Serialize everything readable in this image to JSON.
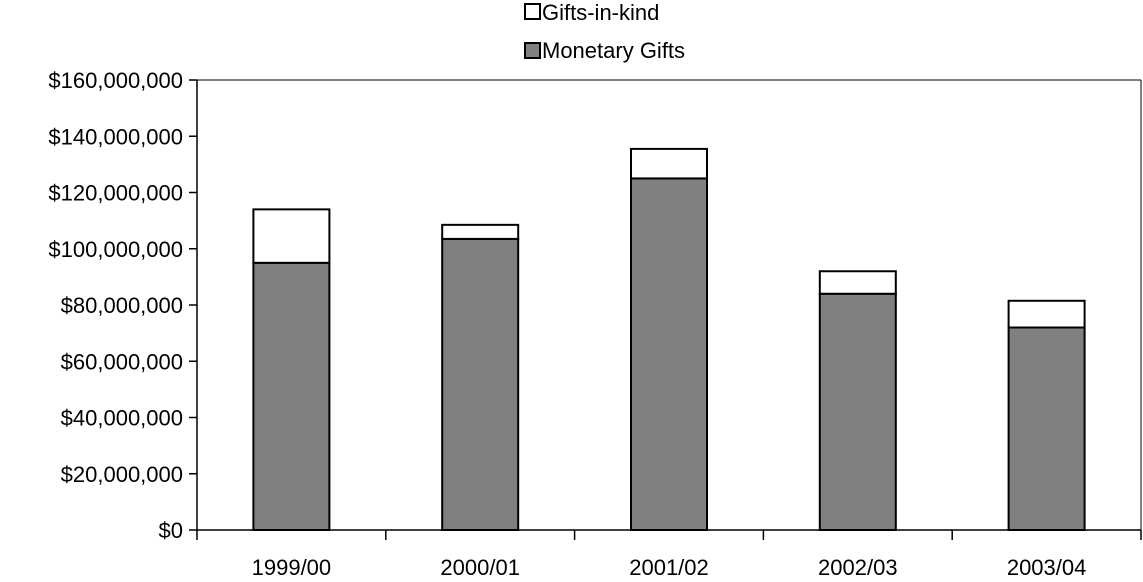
{
  "chart_data": {
    "type": "bar",
    "stacked": true,
    "categories": [
      "1999/00",
      "2000/01",
      "2001/02",
      "2002/03",
      "2003/04"
    ],
    "series": [
      {
        "name": "Monetary Gifts",
        "color": "#808080",
        "values": [
          95000000,
          103500000,
          125000000,
          84000000,
          72000000
        ]
      },
      {
        "name": "Gifts-in-kind",
        "color": "#ffffff",
        "values": [
          19000000,
          5000000,
          10500000,
          8000000,
          9500000
        ]
      }
    ],
    "ylim": [
      0,
      160000000
    ],
    "yticks": [
      0,
      20000000,
      40000000,
      60000000,
      80000000,
      100000000,
      120000000,
      140000000,
      160000000
    ],
    "ytick_labels": [
      "$0",
      "$20,000,000",
      "$40,000,000",
      "$60,000,000",
      "$80,000,000",
      "$100,000,000",
      "$120,000,000",
      "$140,000,000",
      "$160,000,000"
    ],
    "legend": {
      "placement": "top-center",
      "entries": [
        "Gifts-in-kind",
        "Monetary Gifts"
      ]
    },
    "grid": false,
    "title": "",
    "xlabel": "",
    "ylabel": ""
  }
}
